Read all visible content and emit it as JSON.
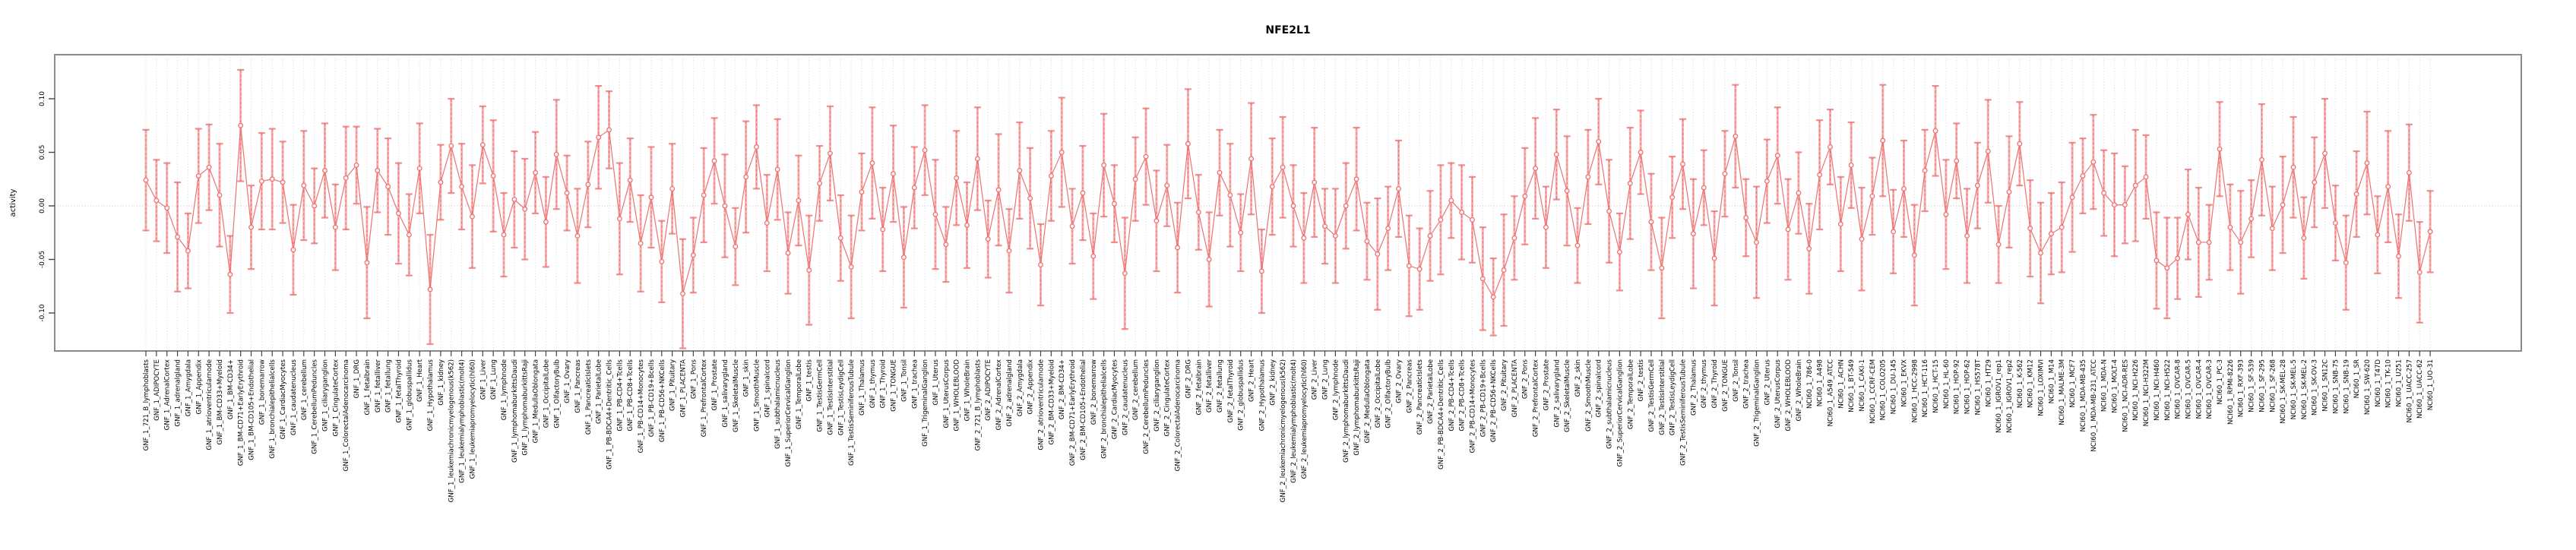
{
  "title": "NFE2L1",
  "y_axis": {
    "label": "activity",
    "ticks": [
      0.1,
      0.05,
      0.0,
      -0.05,
      -0.1
    ],
    "tick_labels": [
      "0.10",
      "0.05",
      "0.00",
      "-0.05",
      "-0.10"
    ]
  },
  "colors": {
    "series_main": "#ee7272",
    "series_light": "#f5a6a6",
    "grid": "#d6d6d6",
    "zero_line": "#c0c0c0",
    "box_border": "#8a8a8a",
    "tick": "#444444"
  },
  "chart_data": {
    "type": "line",
    "subtype": "points-with-error-bars",
    "title": "NFE2L1",
    "xlabel": "",
    "ylabel": "activity",
    "ylim": [
      -0.135,
      0.141
    ],
    "yticks": [
      0.1,
      0.05,
      0.0,
      -0.05,
      -0.1
    ],
    "grid": "dotted vertical line per category; dotted horizontal line at y=0",
    "legend_position": "none",
    "categories": [
      "GNF_1_721_B_lymphoblasts",
      "GNF_1_ADIPOCYTE",
      "GNF_1_AdrenalCortex",
      "GNF_1_adrenalgland",
      "GNF_1_Amygdala",
      "GNF_1_Appendix",
      "GNF_1_atrioventricularnode",
      "GNF_1_BM-CD33+Myeloid",
      "GNF_1_BM-CD34+",
      "GNF_1_BM-CD71+EarlyErythroid",
      "GNF_1_BM-CD105+Endothelial",
      "GNF_1_bonemarrow",
      "GNF_1_bronchialepithelialcells",
      "GNF_1_CardiacMyocytes",
      "GNF_1_caudatenucleus",
      "GNF_1_cerebellum",
      "GNF_1_CerebellumPeduncles",
      "GNF_1_ciliaryganglion",
      "GNF_1_CingulateCortex",
      "GNF_1_ColorectalAdenocarcinoma",
      "GNF_1_DRG",
      "GNF_1_fetalbrain",
      "GNF_1_fetalliver",
      "GNF_1_fetallung",
      "GNF_1_fetalThyroid",
      "GNF_1_globuspallidus",
      "GNF_1_Heart",
      "GNF_1_Hypothalamus",
      "GNF_1_kidney",
      "GNF_1_leukemiachronicmyelogenous(k562)",
      "GNF_1_leukemialymphoblastic(molt4)",
      "GNF_1_leukemiapromyelocytic(hl60)",
      "GNF_1_Liver",
      "GNF_1_Lung",
      "GNF_1_lymphnode",
      "GNF_1_lymphomaburkittsDaudi",
      "GNF_1_lymphomaburkittsRaji",
      "GNF_1_MedullaOblongata",
      "GNF_1_OccipitalLobe",
      "GNF_1_OlfactoryBulb",
      "GNF_1_Ovary",
      "GNF_1_Pancreas",
      "GNF_1_PancreaticIslets",
      "GNF_1_ParietalLobe",
      "GNF_1_PB-BDCA4+Dentritic_Cells",
      "GNF_1_PB-CD4+Tcells",
      "GNF_1_PB-CD8+Tcells",
      "GNF_1_PB-CD14+Monocytes",
      "GNF_1_PB-CD19+Bcells",
      "GNF_1_PB-CD56+NKCells",
      "GNF_1_Pituitary",
      "GNF_1_PLACENTA",
      "GNF_1_Pons",
      "GNF_1_PrefrontalCortex",
      "GNF_1_Prostate",
      "GNF_1_salivarygland",
      "GNF_1_SkeletalMuscle",
      "GNF_1_skin",
      "GNF_1_SmoothMuscle",
      "GNF_1_spinalcord",
      "GNF_1_subthalamicnucleus",
      "GNF_1_SuperiorCervicalGanglion",
      "GNF_1_TemporalLobe",
      "GNF_1_testis",
      "GNF_1_TestisGermCell",
      "GNF_1_TestisInterstitial",
      "GNF_1_TestisLeydigCell",
      "GNF_1_TestisSeminiferousTubule",
      "GNF_1_Thalamus",
      "GNF_1_thymus",
      "GNF_1_Thyroid",
      "GNF_1_TONGUE",
      "GNF_1_Tonsil",
      "GNF_1_trachea",
      "GNF_1_TrigeminalGanglion",
      "GNF_1_Uterus",
      "GNF_1_UterusCorpus",
      "GNF_1_WHOLEBLOOD",
      "GNF_1_WholeBrain",
      "GNF_2_721_B_lymphoblasts",
      "GNF_2_ADIPOCYTE",
      "GNF_2_AdrenalCortex",
      "GNF_2_adrenalgland",
      "GNF_2_Amygdala",
      "GNF_2_Appendix",
      "GNF_2_atrioventricularnode",
      "GNF_2_BM-CD33+Myeloid",
      "GNF_2_BM-CD34+",
      "GNF_2_BM-CD71+EarlyErythroid",
      "GNF_2_BM-CD105+Endothelial",
      "GNF_2_bonemarrow",
      "GNF_2_bronchialepithelialcells",
      "GNF_2_CardiacMyocytes",
      "GNF_2_caudatenucleus",
      "GNF_2_cerebellum",
      "GNF_2_CerebellumPeduncles",
      "GNF_2_ciliaryganglion",
      "GNF_2_CingulateCortex",
      "GNF_2_ColorectalAdenocarcinoma",
      "GNF_2_DRG",
      "GNF_2_fetalbrain",
      "GNF_2_fetalliver",
      "GNF_2_fetallung",
      "GNF_2_fetalThyroid",
      "GNF_2_globuspallidus",
      "GNF_2_Heart",
      "GNF_2_Hypothalamus",
      "GNF_2_kidney",
      "GNF_2_leukemiachronicmyelogenous(k562)",
      "GNF_2_leukemialymphoblastic(molt4)",
      "GNF_2_leukemiapromyelocytic(hl60)",
      "GNF_2_Liver",
      "GNF_2_Lung",
      "GNF_2_lymphnode",
      "GNF_2_lymphomaburkittsDaudi",
      "GNF_2_lymphomaburkittsRaji",
      "GNF_2_MedullaOblongata",
      "GNF_2_OccipitalLobe",
      "GNF_2_OlfactoryBulb",
      "GNF_2_Ovary",
      "GNF_2_Pancreas",
      "GNF_2_PancreaticIslets",
      "GNF_2_ParietalLobe",
      "GNF_2_PB-BDCA4+Dentritic_Cells",
      "GNF_2_PB-CD4+Tcells",
      "GNF_2_PB-CD8+Tcells",
      "GNF_2_PB-CD14+Monocytes",
      "GNF_2_PB-CD19+Bcells",
      "GNF_2_PB-CD56+NKCells",
      "GNF_2_Pituitary",
      "GNF_2_PLACENTA",
      "GNF_2_Pons",
      "GNF_2_PrefrontalCortex",
      "GNF_2_Prostate",
      "GNF_2_salivarygland",
      "GNF_2_SkeletalMuscle",
      "GNF_2_skin",
      "GNF_2_SmoothMuscle",
      "GNF_2_spinalcord",
      "GNF_2_subthalamicnucleus",
      "GNF_2_SuperiorCervicalGanglion",
      "GNF_2_TemporalLobe",
      "GNF_2_testis",
      "GNF_2_TestisGermCell",
      "GNF_2_TestisInterstitial",
      "GNF_2_TestisLeydigCell",
      "GNF_2_TestisSeminiferousTubule",
      "GNF_2_Thalamus",
      "GNF_2_thymus",
      "GNF_2_Thyroid",
      "GNF_2_TONGUE",
      "GNF_2_Tonsil",
      "GNF_2_trachea",
      "GNF_2_TrigeminalGanglion",
      "GNF_2_Uterus",
      "GNF_2_UterusCorpus",
      "GNF_2_WHOLEBLOOD",
      "GNF_2_WholeBrain",
      "NCI60_1_786-0",
      "NCI60_1_A498",
      "NCI60_1_A549_ATCC",
      "NCI60_1_ACHN",
      "NCI60_1_BT-549",
      "NCI60_1_CAKI-1",
      "NCI60_1_CCRF-CEM",
      "NCI60_1_COLO205",
      "NCI60_1_DU-145",
      "NCI60_1_EKVX",
      "NCI60_1_HCC-2998",
      "NCI60_1_HCT-116",
      "NCI60_1_HCT-15",
      "NCI60_1_HL-60",
      "NCI60_1_HOP-92",
      "NCI60_1_HOP-62",
      "NCI60_1_HS578T",
      "NCI60_1_HT29",
      "NCI60_1_IGROV1_rep1",
      "NCI60_1_IGROV1_rep2",
      "NCI60_1_K-562",
      "NCI60_1_KM12",
      "NCI60_1_LOXIMVI",
      "NCI60_1_M14",
      "NCI60_1_MALME-3M",
      "NCI60_1_MCF7",
      "NCI60_1_MDA-MB-435",
      "NCI60_1_MDA-MB-231_ATCC",
      "NCI60_1_MDA-N",
      "NCI60_1_MOLT-4",
      "NCI60_1_NCI-ADR-RES",
      "NCI60_1_NCI-H226",
      "NCI60_1_NCI-H322M",
      "NCI60_1_NCI-H460",
      "NCI60_1_NCI-H522",
      "NCI60_1_OVCAR-8",
      "NCI60_1_OVCAR-5",
      "NCI60_1_OVCAR-4",
      "NCI60_1_OVCAR-3",
      "NCI60_1_PC-3",
      "NCI60_1_RPMI-8226",
      "NCI60_1_RXF-393",
      "NCI60_1_SF-539",
      "NCI60_1_SF-295",
      "NCI60_1_SF-268",
      "NCI60_1_SK-MEL-28",
      "NCI60_1_SK-MEL-5",
      "NCI60_1_SK-MEL-2",
      "NCI60_1_SK-OV-3",
      "NCI60_1_SN12C",
      "NCI60_1_SNB-75",
      "NCI60_1_SNB-19",
      "NCI60_1_SR",
      "NCI60_1_SW-620",
      "NCI60_1_T47D",
      "NCI60_1_TK-10",
      "NCI60_1_U251",
      "NCI60_1_UACC-257",
      "NCI60_1_UACC-62",
      "NCI60_1_UO-31"
    ],
    "series": [
      {
        "name": "activity",
        "values": [
          0.024,
          0.005,
          -0.002,
          -0.029,
          -0.042,
          0.028,
          0.036,
          0.01,
          -0.064,
          0.075,
          -0.02,
          0.023,
          0.025,
          0.022,
          -0.041,
          0.019,
          0.0,
          0.033,
          -0.02,
          0.026,
          0.038,
          -0.053,
          0.033,
          0.018,
          -0.007,
          -0.027,
          0.035,
          -0.078,
          0.022,
          0.056,
          0.018,
          -0.01,
          0.057,
          0.028,
          -0.027,
          0.006,
          -0.003,
          0.031,
          -0.015,
          0.048,
          0.012,
          -0.028,
          0.02,
          0.064,
          0.071,
          -0.012,
          0.024,
          -0.035,
          0.008,
          -0.052,
          0.016,
          -0.082,
          -0.046,
          0.01,
          0.042,
          0.0,
          -0.038,
          0.027,
          0.055,
          -0.016,
          0.034,
          -0.044,
          0.005,
          -0.06,
          0.021,
          0.049,
          -0.03,
          -0.057,
          0.013,
          0.04,
          -0.022,
          0.03,
          -0.048,
          0.017,
          0.052,
          -0.008,
          -0.036,
          0.026,
          -0.018,
          0.044,
          -0.031,
          0.015,
          -0.042,
          0.033,
          0.007,
          -0.055,
          0.028,
          0.05,
          -0.019,
          0.012,
          -0.047,
          0.038,
          0.002,
          -0.063,
          0.025,
          0.046,
          -0.014,
          0.019,
          -0.039,
          0.058,
          -0.006,
          -0.05,
          0.031,
          0.01,
          -0.025,
          0.044,
          -0.061,
          0.018,
          0.036,
          0.0,
          -0.03,
          0.022,
          -0.019,
          -0.028,
          0.0,
          0.025,
          -0.033,
          -0.045,
          -0.021,
          0.016,
          -0.056,
          -0.059,
          -0.028,
          -0.013,
          0.005,
          -0.006,
          -0.013,
          -0.068,
          -0.085,
          -0.06,
          -0.03,
          0.009,
          0.035,
          -0.02,
          0.048,
          0.014,
          -0.037,
          0.027,
          0.06,
          -0.005,
          -0.043,
          0.021,
          0.05,
          -0.015,
          -0.058,
          0.008,
          0.039,
          -0.026,
          0.017,
          -0.049,
          0.03,
          0.065,
          -0.011,
          -0.034,
          0.023,
          0.047,
          -0.022,
          0.012,
          -0.04,
          0.029,
          0.055,
          -0.017,
          0.038,
          -0.031,
          0.009,
          0.061,
          -0.024,
          0.016,
          -0.046,
          0.033,
          0.07,
          -0.008,
          0.042,
          -0.028,
          0.019,
          0.051,
          -0.036,
          0.013,
          0.058,
          -0.021,
          -0.044,
          -0.026,
          -0.02,
          0.008,
          0.028,
          0.041,
          0.012,
          0.001,
          0.001,
          0.019,
          0.027,
          -0.051,
          -0.058,
          -0.049,
          -0.008,
          -0.034,
          -0.034,
          0.053,
          -0.02,
          -0.034,
          -0.012,
          0.043,
          -0.021,
          0.001,
          0.036,
          -0.03,
          0.022,
          0.049,
          -0.016,
          -0.053,
          0.011,
          0.04,
          -0.027,
          0.018,
          -0.047,
          0.031,
          -0.062,
          -0.024
        ],
        "errors": [
          0.047,
          0.038,
          0.042,
          0.051,
          0.035,
          0.044,
          0.04,
          0.048,
          0.036,
          0.052,
          0.039,
          0.045,
          0.047,
          0.038,
          0.042,
          0.051,
          0.035,
          0.044,
          0.04,
          0.048,
          0.036,
          0.052,
          0.039,
          0.045,
          0.047,
          0.038,
          0.042,
          0.051,
          0.035,
          0.044,
          0.04,
          0.048,
          0.036,
          0.052,
          0.039,
          0.045,
          0.047,
          0.038,
          0.042,
          0.051,
          0.035,
          0.044,
          0.04,
          0.048,
          0.036,
          0.052,
          0.039,
          0.045,
          0.047,
          0.038,
          0.042,
          0.051,
          0.035,
          0.044,
          0.04,
          0.048,
          0.036,
          0.052,
          0.039,
          0.045,
          0.047,
          0.038,
          0.042,
          0.051,
          0.035,
          0.044,
          0.04,
          0.048,
          0.036,
          0.052,
          0.039,
          0.045,
          0.047,
          0.038,
          0.042,
          0.051,
          0.035,
          0.044,
          0.04,
          0.048,
          0.036,
          0.052,
          0.039,
          0.045,
          0.047,
          0.038,
          0.042,
          0.051,
          0.035,
          0.044,
          0.04,
          0.048,
          0.036,
          0.052,
          0.039,
          0.045,
          0.047,
          0.038,
          0.042,
          0.051,
          0.035,
          0.044,
          0.04,
          0.048,
          0.036,
          0.052,
          0.039,
          0.045,
          0.047,
          0.038,
          0.042,
          0.051,
          0.035,
          0.044,
          0.04,
          0.048,
          0.036,
          0.052,
          0.039,
          0.045,
          0.047,
          0.038,
          0.042,
          0.051,
          0.035,
          0.044,
          0.04,
          0.048,
          0.036,
          0.052,
          0.039,
          0.045,
          0.047,
          0.038,
          0.042,
          0.051,
          0.035,
          0.044,
          0.04,
          0.048,
          0.036,
          0.052,
          0.039,
          0.045,
          0.047,
          0.038,
          0.042,
          0.051,
          0.035,
          0.044,
          0.04,
          0.048,
          0.036,
          0.052,
          0.039,
          0.045,
          0.047,
          0.038,
          0.042,
          0.051,
          0.035,
          0.044,
          0.04,
          0.048,
          0.036,
          0.052,
          0.039,
          0.045,
          0.047,
          0.038,
          0.042,
          0.051,
          0.035,
          0.044,
          0.04,
          0.048,
          0.036,
          0.052,
          0.039,
          0.045,
          0.047,
          0.038,
          0.042,
          0.051,
          0.035,
          0.044,
          0.04,
          0.048,
          0.036,
          0.052,
          0.039,
          0.045,
          0.047,
          0.038,
          0.042,
          0.051,
          0.035,
          0.044,
          0.04,
          0.048,
          0.036,
          0.052,
          0.039,
          0.045,
          0.047,
          0.038,
          0.042,
          0.051,
          0.035,
          0.044,
          0.04,
          0.048,
          0.036,
          0.052,
          0.039,
          0.045,
          0.047,
          0.038
        ]
      }
    ]
  }
}
